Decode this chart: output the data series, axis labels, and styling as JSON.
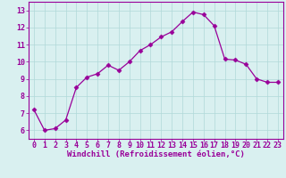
{
  "x": [
    0,
    1,
    2,
    3,
    4,
    5,
    6,
    7,
    8,
    9,
    10,
    11,
    12,
    13,
    14,
    15,
    16,
    17,
    18,
    19,
    20,
    21,
    22,
    23
  ],
  "y": [
    7.2,
    6.0,
    6.1,
    6.6,
    8.5,
    9.1,
    9.3,
    9.8,
    9.5,
    10.0,
    10.65,
    11.0,
    11.45,
    11.75,
    12.35,
    12.9,
    12.75,
    12.1,
    10.15,
    10.1,
    9.85,
    9.0,
    8.8,
    8.8
  ],
  "line_color": "#990099",
  "marker": "D",
  "marker_size": 2.5,
  "bg_color": "#d9f0f0",
  "grid_color": "#b0d8d8",
  "xlabel": "Windchill (Refroidissement éolien,°C)",
  "xlim": [
    -0.5,
    23.5
  ],
  "ylim": [
    5.5,
    13.5
  ],
  "yticks": [
    6,
    7,
    8,
    9,
    10,
    11,
    12,
    13
  ],
  "xticks": [
    0,
    1,
    2,
    3,
    4,
    5,
    6,
    7,
    8,
    9,
    10,
    11,
    12,
    13,
    14,
    15,
    16,
    17,
    18,
    19,
    20,
    21,
    22,
    23
  ],
  "xlabel_fontsize": 6.5,
  "tick_fontsize": 6.0,
  "ylabel_fontsize": 6.0
}
